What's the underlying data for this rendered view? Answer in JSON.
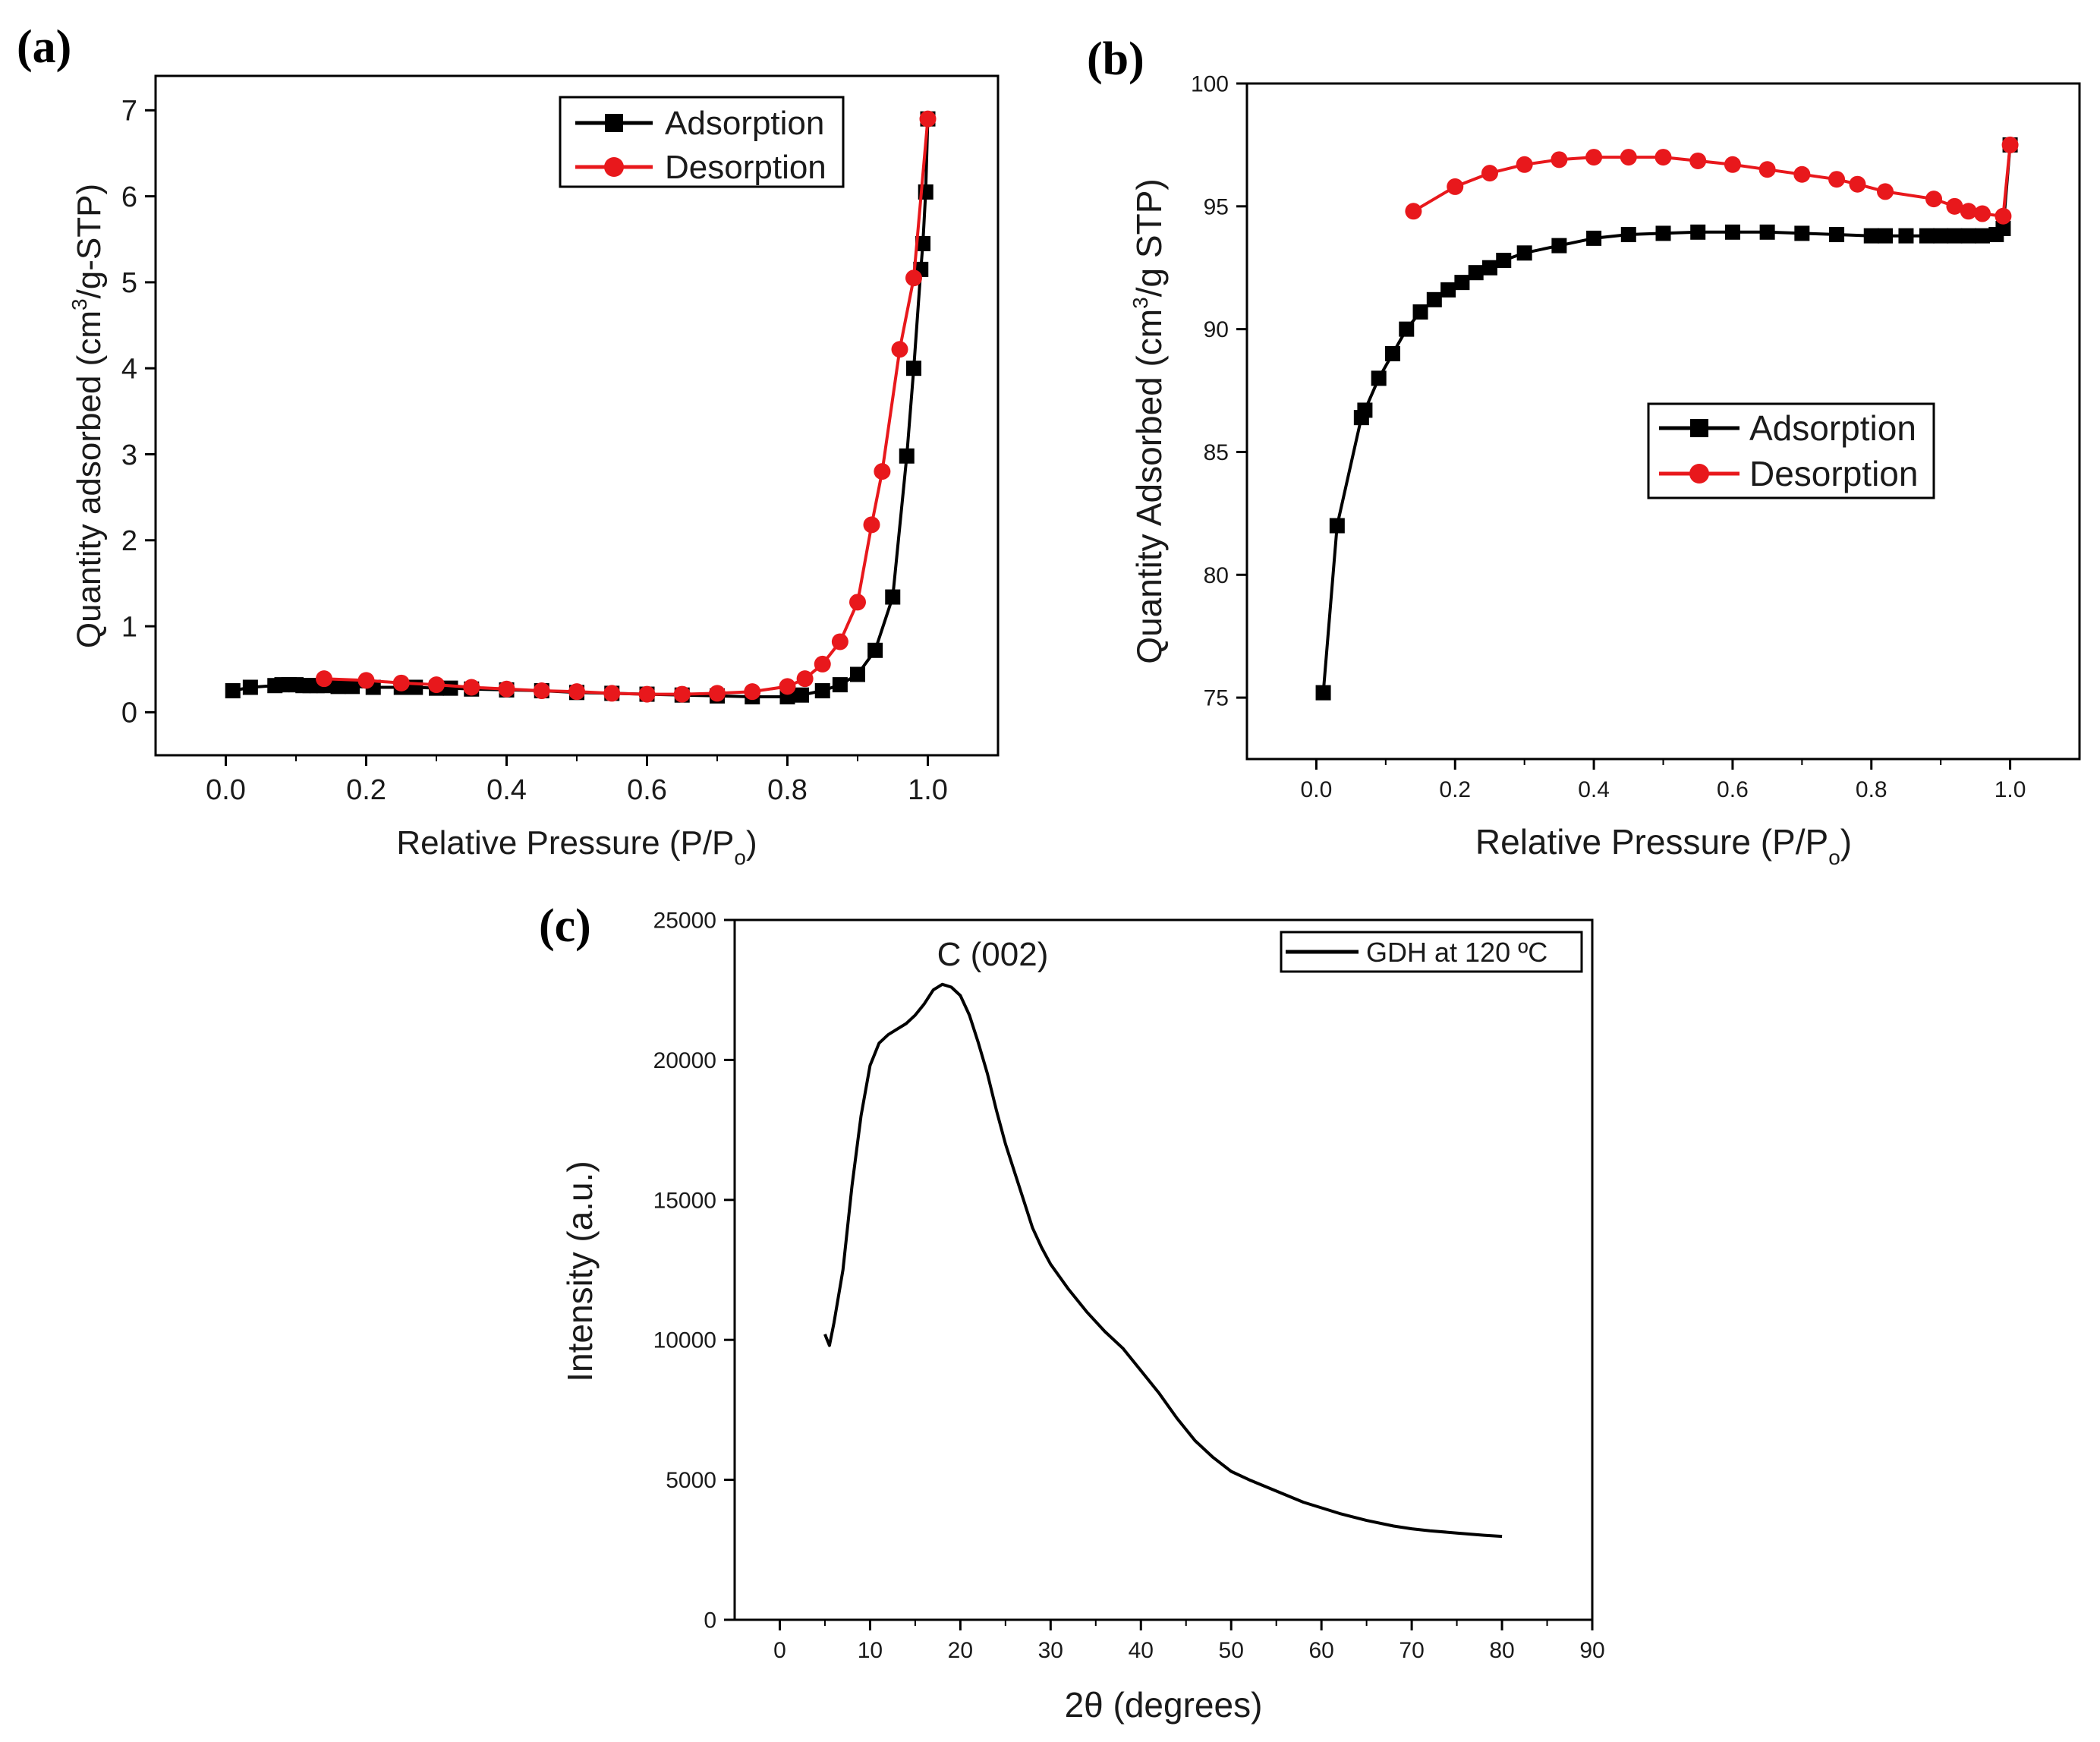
{
  "chart_data": [
    {
      "panel": "(a)",
      "type": "line",
      "title": "",
      "xlabel": "Relative Pressure (P/P",
      "xlabel_sub": "o",
      "xlabel_close": ")",
      "ylabel_pre": "Quantity adsorbed (cm",
      "ylabel_sup": "3",
      "ylabel_post": "/g-STP)",
      "xlim": [
        -0.1,
        1.1
      ],
      "ylim": [
        -0.5,
        7.4
      ],
      "xticks": [
        0.0,
        0.2,
        0.4,
        0.6,
        0.8,
        1.0
      ],
      "xtick_labels": [
        "0.0",
        "0.2",
        "0.4",
        "0.6",
        "0.8",
        "1.0"
      ],
      "yticks": [
        0,
        1,
        2,
        3,
        4,
        5,
        6,
        7
      ],
      "ytick_labels": [
        "0",
        "1",
        "2",
        "3",
        "4",
        "5",
        "6",
        "7"
      ],
      "legend_position": "top-right",
      "series": [
        {
          "name": "Adsorption",
          "color": "#000000",
          "marker": "square",
          "points": [
            [
              0.01,
              0.25
            ],
            [
              0.035,
              0.29
            ],
            [
              0.07,
              0.31
            ],
            [
              0.08,
              0.32
            ],
            [
              0.09,
              0.32
            ],
            [
              0.1,
              0.32
            ],
            [
              0.11,
              0.31
            ],
            [
              0.12,
              0.31
            ],
            [
              0.13,
              0.31
            ],
            [
              0.14,
              0.31
            ],
            [
              0.16,
              0.3
            ],
            [
              0.18,
              0.3
            ],
            [
              0.21,
              0.29
            ],
            [
              0.25,
              0.29
            ],
            [
              0.27,
              0.29
            ],
            [
              0.3,
              0.28
            ],
            [
              0.32,
              0.28
            ],
            [
              0.35,
              0.27
            ],
            [
              0.4,
              0.26
            ],
            [
              0.45,
              0.25
            ],
            [
              0.5,
              0.23
            ],
            [
              0.55,
              0.22
            ],
            [
              0.6,
              0.21
            ],
            [
              0.65,
              0.2
            ],
            [
              0.7,
              0.19
            ],
            [
              0.75,
              0.18
            ],
            [
              0.8,
              0.18
            ],
            [
              0.82,
              0.2
            ],
            [
              0.85,
              0.25
            ],
            [
              0.875,
              0.32
            ],
            [
              0.9,
              0.44
            ],
            [
              0.925,
              0.72
            ],
            [
              0.95,
              1.34
            ],
            [
              0.97,
              2.98
            ],
            [
              0.98,
              4.0
            ],
            [
              0.99,
              5.15
            ],
            [
              0.993,
              5.45
            ],
            [
              0.997,
              6.05
            ],
            [
              1.0,
              6.9
            ]
          ]
        },
        {
          "name": "Desorption",
          "color": "#e8181c",
          "marker": "circle",
          "points": [
            [
              1.0,
              6.9
            ],
            [
              0.98,
              5.05
            ],
            [
              0.96,
              4.22
            ],
            [
              0.935,
              2.8
            ],
            [
              0.92,
              2.18
            ],
            [
              0.9,
              1.28
            ],
            [
              0.875,
              0.82
            ],
            [
              0.85,
              0.56
            ],
            [
              0.825,
              0.39
            ],
            [
              0.8,
              0.3
            ],
            [
              0.75,
              0.24
            ],
            [
              0.7,
              0.22
            ],
            [
              0.65,
              0.21
            ],
            [
              0.6,
              0.21
            ],
            [
              0.55,
              0.22
            ],
            [
              0.5,
              0.24
            ],
            [
              0.45,
              0.25
            ],
            [
              0.4,
              0.27
            ],
            [
              0.35,
              0.29
            ],
            [
              0.3,
              0.32
            ],
            [
              0.25,
              0.34
            ],
            [
              0.2,
              0.37
            ],
            [
              0.14,
              0.39
            ]
          ]
        }
      ]
    },
    {
      "panel": "(b)",
      "type": "line",
      "title": "",
      "xlabel": "Relative Pressure (P/P",
      "xlabel_sub": "o",
      "xlabel_close": ")",
      "ylabel_pre": "Quantity Adsorbed (cm",
      "ylabel_sup": "3",
      "ylabel_post": "/g STP)",
      "xlim": [
        -0.1,
        1.1
      ],
      "ylim": [
        72.5,
        100
      ],
      "xticks": [
        0.0,
        0.2,
        0.4,
        0.6,
        0.8,
        1.0
      ],
      "xtick_labels": [
        "0.0",
        "0.2",
        "0.4",
        "0.6",
        "0.8",
        "1.0"
      ],
      "yticks": [
        75,
        80,
        85,
        90,
        95,
        100
      ],
      "ytick_labels": [
        "75",
        "80",
        "85",
        "90",
        "95",
        "100"
      ],
      "legend_position": "center-right",
      "series": [
        {
          "name": "Adsorption",
          "color": "#000000",
          "marker": "square",
          "points": [
            [
              0.01,
              75.2
            ],
            [
              0.03,
              82.0
            ],
            [
              0.065,
              86.4
            ],
            [
              0.07,
              86.7
            ],
            [
              0.09,
              88.0
            ],
            [
              0.11,
              89.0
            ],
            [
              0.13,
              90.0
            ],
            [
              0.15,
              90.7
            ],
            [
              0.17,
              91.2
            ],
            [
              0.19,
              91.6
            ],
            [
              0.21,
              91.9
            ],
            [
              0.23,
              92.3
            ],
            [
              0.25,
              92.5
            ],
            [
              0.27,
              92.8
            ],
            [
              0.3,
              93.1
            ],
            [
              0.35,
              93.4
            ],
            [
              0.4,
              93.7
            ],
            [
              0.45,
              93.85
            ],
            [
              0.5,
              93.9
            ],
            [
              0.55,
              93.95
            ],
            [
              0.6,
              93.95
            ],
            [
              0.65,
              93.95
            ],
            [
              0.7,
              93.9
            ],
            [
              0.75,
              93.85
            ],
            [
              0.8,
              93.8
            ],
            [
              0.82,
              93.8
            ],
            [
              0.85,
              93.8
            ],
            [
              0.88,
              93.8
            ],
            [
              0.9,
              93.8
            ],
            [
              0.92,
              93.8
            ],
            [
              0.94,
              93.8
            ],
            [
              0.96,
              93.8
            ],
            [
              0.98,
              93.85
            ],
            [
              0.99,
              94.1
            ],
            [
              1.0,
              97.5
            ]
          ]
        },
        {
          "name": "Desorption",
          "color": "#e8181c",
          "marker": "circle",
          "points": [
            [
              1.0,
              97.5
            ],
            [
              0.99,
              94.6
            ],
            [
              0.96,
              94.7
            ],
            [
              0.94,
              94.8
            ],
            [
              0.92,
              95.0
            ],
            [
              0.89,
              95.3
            ],
            [
              0.82,
              95.6
            ],
            [
              0.78,
              95.9
            ],
            [
              0.75,
              96.1
            ],
            [
              0.7,
              96.3
            ],
            [
              0.65,
              96.5
            ],
            [
              0.6,
              96.7
            ],
            [
              0.55,
              96.85
            ],
            [
              0.5,
              97.0
            ],
            [
              0.45,
              97.0
            ],
            [
              0.4,
              97.0
            ],
            [
              0.35,
              96.9
            ],
            [
              0.3,
              96.7
            ],
            [
              0.25,
              96.35
            ],
            [
              0.2,
              95.8
            ],
            [
              0.14,
              94.8
            ]
          ]
        }
      ]
    },
    {
      "panel": "(c)",
      "type": "line",
      "title": "",
      "annotation": "C (002)",
      "xlabel": "2θ (degrees)",
      "ylabel": "Intensity (a.u.)",
      "xlim": [
        -5,
        90
      ],
      "ylim": [
        0,
        25000
      ],
      "xticks": [
        0,
        10,
        20,
        30,
        40,
        50,
        60,
        70,
        80,
        90
      ],
      "xtick_labels": [
        "0",
        "10",
        "20",
        "30",
        "40",
        "50",
        "60",
        "70",
        "80",
        "90"
      ],
      "yticks": [
        0,
        5000,
        10000,
        15000,
        20000,
        25000
      ],
      "ytick_labels": [
        "0",
        "5000",
        "10000",
        "15000",
        "20000",
        "25000"
      ],
      "legend_position": "top-right",
      "series": [
        {
          "name": "GDH at 120 ºC",
          "color": "#000000",
          "marker": "none",
          "points": [
            [
              5,
              10200
            ],
            [
              5.5,
              9800
            ],
            [
              6,
              10600
            ],
            [
              7,
              12500
            ],
            [
              8,
              15500
            ],
            [
              9,
              18000
            ],
            [
              10,
              19800
            ],
            [
              11,
              20600
            ],
            [
              12,
              20900
            ],
            [
              13,
              21100
            ],
            [
              14,
              21300
            ],
            [
              15,
              21600
            ],
            [
              16,
              22000
            ],
            [
              17,
              22500
            ],
            [
              18,
              22700
            ],
            [
              19,
              22600
            ],
            [
              20,
              22300
            ],
            [
              21,
              21600
            ],
            [
              22,
              20600
            ],
            [
              23,
              19500
            ],
            [
              24,
              18200
            ],
            [
              25,
              17000
            ],
            [
              26,
              16000
            ],
            [
              27,
              15000
            ],
            [
              28,
              14000
            ],
            [
              29,
              13300
            ],
            [
              30,
              12700
            ],
            [
              32,
              11800
            ],
            [
              34,
              11000
            ],
            [
              36,
              10300
            ],
            [
              38,
              9700
            ],
            [
              40,
              8900
            ],
            [
              42,
              8100
            ],
            [
              44,
              7200
            ],
            [
              46,
              6400
            ],
            [
              48,
              5800
            ],
            [
              50,
              5300
            ],
            [
              52,
              5000
            ],
            [
              55,
              4600
            ],
            [
              58,
              4200
            ],
            [
              60,
              4000
            ],
            [
              62,
              3800
            ],
            [
              65,
              3550
            ],
            [
              68,
              3350
            ],
            [
              70,
              3250
            ],
            [
              72,
              3180
            ],
            [
              75,
              3100
            ],
            [
              78,
              3020
            ],
            [
              80,
              2980
            ]
          ]
        }
      ]
    }
  ]
}
